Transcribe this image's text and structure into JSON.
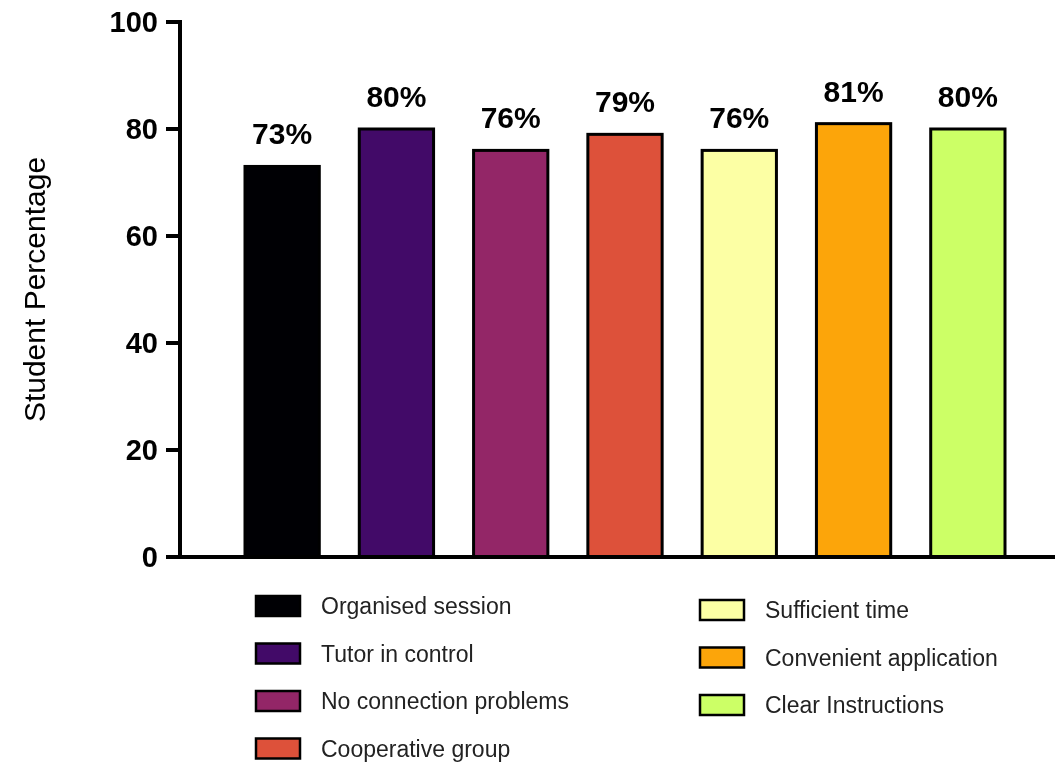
{
  "chart_data": {
    "type": "bar",
    "ylabel": "Student Percentage",
    "stacked": true,
    "categories": [
      null,
      null,
      null,
      null,
      null,
      null,
      null
    ],
    "series": [
      {
        "name": "Organised session",
        "color": "#000004",
        "values": [
          73,
          null,
          null,
          null,
          null,
          null,
          null
        ],
        "value_labels": [
          "73%",
          null,
          null,
          null,
          null,
          null,
          null
        ]
      },
      {
        "name": "Tutor in control",
        "color": "#420a68",
        "values": [
          null,
          80,
          null,
          null,
          null,
          null,
          null
        ],
        "value_labels": [
          null,
          "80%",
          null,
          null,
          null,
          null,
          null
        ]
      },
      {
        "name": "No connection problems",
        "color": "#932667",
        "values": [
          null,
          null,
          76,
          null,
          null,
          null,
          null
        ],
        "value_labels": [
          null,
          null,
          "76%",
          null,
          null,
          null,
          null
        ]
      },
      {
        "name": "Cooperative group",
        "color": "#dd513a",
        "values": [
          null,
          null,
          null,
          79,
          null,
          null,
          null
        ],
        "value_labels": [
          null,
          null,
          null,
          "79%",
          null,
          null,
          null
        ]
      },
      {
        "name": "Sufficient time",
        "color": "#fcffa4",
        "values": [
          null,
          null,
          null,
          null,
          76,
          null,
          null
        ],
        "value_labels": [
          null,
          null,
          null,
          null,
          "76%",
          null,
          null
        ]
      },
      {
        "name": "Convenient application",
        "color": "#fca50a",
        "values": [
          null,
          null,
          null,
          null,
          null,
          81,
          null
        ],
        "value_labels": [
          null,
          null,
          null,
          null,
          null,
          "81%",
          null
        ]
      },
      {
        "name": "Clear Instructions",
        "color": "#ccff66",
        "values": [
          null,
          null,
          null,
          null,
          null,
          null,
          80
        ],
        "value_labels": [
          null,
          null,
          null,
          null,
          null,
          null,
          "80%"
        ]
      }
    ],
    "ylim": [
      0,
      100
    ],
    "yticks": [
      0,
      20,
      40,
      60,
      80,
      100
    ],
    "tick_labels": "y",
    "legend": "bottom"
  }
}
